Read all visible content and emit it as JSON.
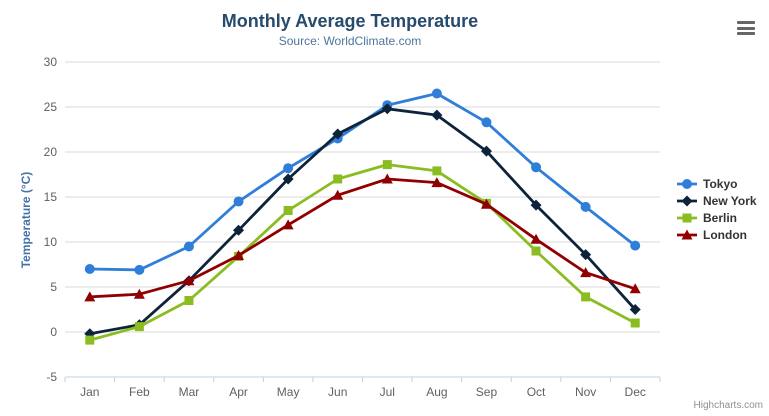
{
  "header": {
    "title": "Monthly Average Temperature",
    "subtitle": "Source: WorldClimate.com"
  },
  "credits": {
    "label": "Highcharts.com"
  },
  "context_menu": {
    "icon": "hamburger-icon"
  },
  "chart_data": {
    "type": "line",
    "title": "Monthly Average Temperature",
    "subtitle": "Source: WorldClimate.com",
    "categories": [
      "Jan",
      "Feb",
      "Mar",
      "Apr",
      "May",
      "Jun",
      "Jul",
      "Aug",
      "Sep",
      "Oct",
      "Nov",
      "Dec"
    ],
    "series": [
      {
        "name": "Tokyo",
        "color": "#2f7ed8",
        "marker": "circle",
        "values": [
          7.0,
          6.9,
          9.5,
          14.5,
          18.2,
          21.5,
          25.2,
          26.5,
          23.3,
          18.3,
          13.9,
          9.6
        ]
      },
      {
        "name": "New York",
        "color": "#0d233a",
        "marker": "diamond",
        "values": [
          -0.2,
          0.8,
          5.7,
          11.3,
          17.0,
          22.0,
          24.8,
          24.1,
          20.1,
          14.1,
          8.6,
          2.5
        ]
      },
      {
        "name": "Berlin",
        "color": "#8bbc21",
        "marker": "square",
        "values": [
          -0.9,
          0.6,
          3.5,
          8.4,
          13.5,
          17.0,
          18.6,
          17.9,
          14.3,
          9.0,
          3.9,
          1.0
        ]
      },
      {
        "name": "London",
        "color": "#910000",
        "marker": "triangle",
        "values": [
          3.9,
          4.2,
          5.7,
          8.5,
          11.9,
          15.2,
          17.0,
          16.6,
          14.2,
          10.3,
          6.6,
          4.8
        ]
      }
    ],
    "xlabel": "",
    "ylabel": "Temperature (°C)",
    "ylim": [
      -5,
      30
    ],
    "ytick_step": 5,
    "grid": true,
    "legend_position": "right",
    "colors": {
      "grid_line": "#d8d8d8",
      "axis_line": "#c0d0e0",
      "tick_label": "#606060",
      "title": "#274b6d",
      "subtitle": "#4d759e",
      "axis_title": "#4572a7",
      "legend_text": "#333333",
      "credits_text": "#909090"
    }
  }
}
